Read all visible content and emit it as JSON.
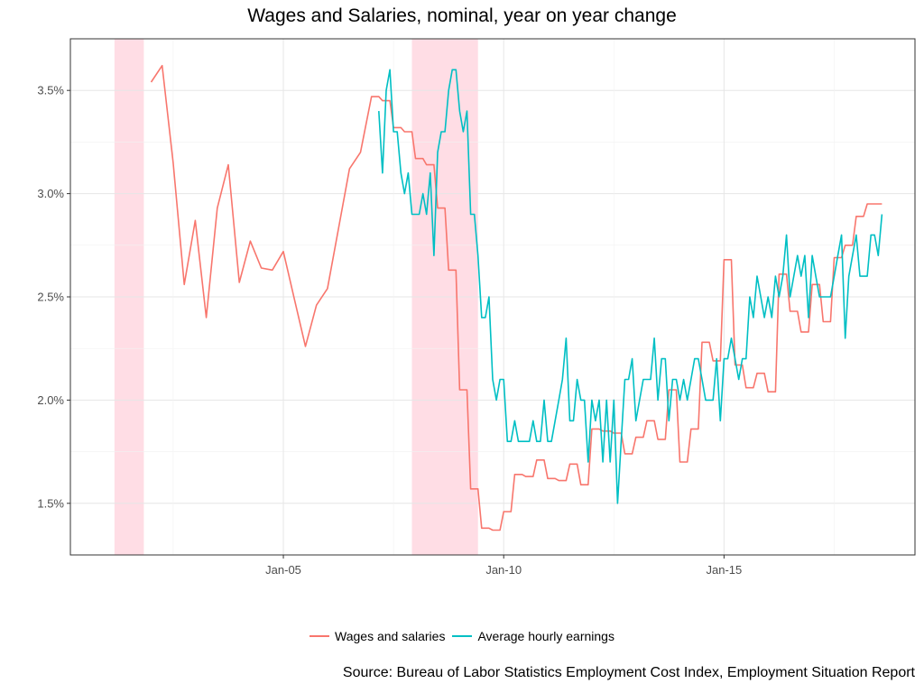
{
  "chart_data": {
    "type": "line",
    "title": "Wages and Salaries, nominal, year on year change",
    "caption": "Source: Bureau of Labor Statistics Employment Cost Index, Employment Situation Report",
    "xlabel": "",
    "ylabel": "",
    "x_ticks": [
      {
        "label": "Jan-05",
        "date": "2005-01"
      },
      {
        "label": "Jan-10",
        "date": "2010-01"
      },
      {
        "label": "Jan-15",
        "date": "2015-01"
      }
    ],
    "y_ticks": [
      "1.5%",
      "2.0%",
      "2.5%",
      "3.0%",
      "3.5%"
    ],
    "y_tick_values": [
      1.5,
      2.0,
      2.5,
      3.0,
      3.5
    ],
    "xlim": [
      "2000-03",
      "2019-05"
    ],
    "ylim": [
      1.25,
      3.75
    ],
    "grid": true,
    "legend_position": "bottom",
    "recessions": [
      {
        "start": "2001-03",
        "end": "2001-11"
      },
      {
        "start": "2007-12",
        "end": "2009-06"
      }
    ],
    "series": [
      {
        "name": "Wages and salaries",
        "color": "#F8766D",
        "step": false,
        "points": [
          [
            "2002-01",
            3.54
          ],
          [
            "2002-04",
            3.62
          ],
          [
            "2002-07",
            3.15
          ],
          [
            "2002-10",
            2.56
          ],
          [
            "2003-01",
            2.87
          ],
          [
            "2003-04",
            2.4
          ],
          [
            "2003-07",
            2.93
          ],
          [
            "2003-10",
            3.14
          ],
          [
            "2004-01",
            2.57
          ],
          [
            "2004-04",
            2.77
          ],
          [
            "2004-07",
            2.64
          ],
          [
            "2004-10",
            2.63
          ],
          [
            "2005-01",
            2.72
          ],
          [
            "2005-04",
            2.49
          ],
          [
            "2005-07",
            2.26
          ],
          [
            "2005-10",
            2.46
          ],
          [
            "2006-01",
            2.54
          ],
          [
            "2006-04",
            2.83
          ],
          [
            "2006-07",
            3.12
          ],
          [
            "2006-10",
            3.2
          ],
          [
            "2007-01",
            3.47
          ],
          [
            "2007-03",
            3.47
          ],
          [
            "2007-04",
            3.45
          ],
          [
            "2007-06",
            3.45
          ],
          [
            "2007-07",
            3.32
          ],
          [
            "2007-09",
            3.32
          ],
          [
            "2007-10",
            3.3
          ],
          [
            "2007-12",
            3.3
          ],
          [
            "2008-01",
            3.17
          ],
          [
            "2008-03",
            3.17
          ],
          [
            "2008-04",
            3.14
          ],
          [
            "2008-06",
            3.14
          ],
          [
            "2008-07",
            2.93
          ],
          [
            "2008-09",
            2.93
          ],
          [
            "2008-10",
            2.63
          ],
          [
            "2008-12",
            2.63
          ],
          [
            "2009-01",
            2.05
          ],
          [
            "2009-03",
            2.05
          ],
          [
            "2009-04",
            1.57
          ],
          [
            "2009-06",
            1.57
          ],
          [
            "2009-07",
            1.38
          ],
          [
            "2009-09",
            1.38
          ],
          [
            "2009-10",
            1.37
          ],
          [
            "2009-12",
            1.37
          ],
          [
            "2010-01",
            1.46
          ],
          [
            "2010-03",
            1.46
          ],
          [
            "2010-04",
            1.64
          ],
          [
            "2010-06",
            1.64
          ],
          [
            "2010-07",
            1.63
          ],
          [
            "2010-09",
            1.63
          ],
          [
            "2010-10",
            1.71
          ],
          [
            "2010-12",
            1.71
          ],
          [
            "2011-01",
            1.62
          ],
          [
            "2011-03",
            1.62
          ],
          [
            "2011-04",
            1.61
          ],
          [
            "2011-06",
            1.61
          ],
          [
            "2011-07",
            1.69
          ],
          [
            "2011-09",
            1.69
          ],
          [
            "2011-10",
            1.59
          ],
          [
            "2011-12",
            1.59
          ],
          [
            "2012-01",
            1.86
          ],
          [
            "2012-03",
            1.86
          ],
          [
            "2012-04",
            1.85
          ],
          [
            "2012-06",
            1.85
          ],
          [
            "2012-07",
            1.84
          ],
          [
            "2012-09",
            1.84
          ],
          [
            "2012-10",
            1.74
          ],
          [
            "2012-12",
            1.74
          ],
          [
            "2013-01",
            1.82
          ],
          [
            "2013-03",
            1.82
          ],
          [
            "2013-04",
            1.9
          ],
          [
            "2013-06",
            1.9
          ],
          [
            "2013-07",
            1.81
          ],
          [
            "2013-09",
            1.81
          ],
          [
            "2013-10",
            2.05
          ],
          [
            "2013-12",
            2.05
          ],
          [
            "2014-01",
            1.7
          ],
          [
            "2014-03",
            1.7
          ],
          [
            "2014-04",
            1.86
          ],
          [
            "2014-06",
            1.86
          ],
          [
            "2014-07",
            2.28
          ],
          [
            "2014-09",
            2.28
          ],
          [
            "2014-10",
            2.19
          ],
          [
            "2014-12",
            2.19
          ],
          [
            "2015-01",
            2.68
          ],
          [
            "2015-03",
            2.68
          ],
          [
            "2015-04",
            2.17
          ],
          [
            "2015-06",
            2.17
          ],
          [
            "2015-07",
            2.06
          ],
          [
            "2015-09",
            2.06
          ],
          [
            "2015-10",
            2.13
          ],
          [
            "2015-12",
            2.13
          ],
          [
            "2016-01",
            2.04
          ],
          [
            "2016-03",
            2.04
          ],
          [
            "2016-04",
            2.61
          ],
          [
            "2016-06",
            2.61
          ],
          [
            "2016-07",
            2.43
          ],
          [
            "2016-09",
            2.43
          ],
          [
            "2016-10",
            2.33
          ],
          [
            "2016-12",
            2.33
          ],
          [
            "2017-01",
            2.56
          ],
          [
            "2017-03",
            2.56
          ],
          [
            "2017-04",
            2.38
          ],
          [
            "2017-06",
            2.38
          ],
          [
            "2017-07",
            2.69
          ],
          [
            "2017-09",
            2.69
          ],
          [
            "2017-10",
            2.75
          ],
          [
            "2017-12",
            2.75
          ],
          [
            "2018-01",
            2.89
          ],
          [
            "2018-03",
            2.89
          ],
          [
            "2018-04",
            2.95
          ],
          [
            "2018-08",
            2.95
          ]
        ]
      },
      {
        "name": "Average hourly earnings",
        "color": "#00BFC4",
        "step": false,
        "points": [
          [
            "2007-03",
            3.4
          ],
          [
            "2007-04",
            3.1
          ],
          [
            "2007-05",
            3.5
          ],
          [
            "2007-06",
            3.6
          ],
          [
            "2007-07",
            3.3
          ],
          [
            "2007-08",
            3.3
          ],
          [
            "2007-09",
            3.1
          ],
          [
            "2007-10",
            3.0
          ],
          [
            "2007-11",
            3.1
          ],
          [
            "2007-12",
            2.9
          ],
          [
            "2008-01",
            2.9
          ],
          [
            "2008-02",
            2.9
          ],
          [
            "2008-03",
            3.0
          ],
          [
            "2008-04",
            2.9
          ],
          [
            "2008-05",
            3.1
          ],
          [
            "2008-06",
            2.7
          ],
          [
            "2008-07",
            3.2
          ],
          [
            "2008-08",
            3.3
          ],
          [
            "2008-09",
            3.3
          ],
          [
            "2008-10",
            3.5
          ],
          [
            "2008-11",
            3.6
          ],
          [
            "2008-12",
            3.6
          ],
          [
            "2009-01",
            3.4
          ],
          [
            "2009-02",
            3.3
          ],
          [
            "2009-03",
            3.4
          ],
          [
            "2009-04",
            2.9
          ],
          [
            "2009-05",
            2.9
          ],
          [
            "2009-06",
            2.7
          ],
          [
            "2009-07",
            2.4
          ],
          [
            "2009-08",
            2.4
          ],
          [
            "2009-09",
            2.5
          ],
          [
            "2009-10",
            2.1
          ],
          [
            "2009-11",
            2.0
          ],
          [
            "2009-12",
            2.1
          ],
          [
            "2010-01",
            2.1
          ],
          [
            "2010-02",
            1.8
          ],
          [
            "2010-03",
            1.8
          ],
          [
            "2010-04",
            1.9
          ],
          [
            "2010-05",
            1.8
          ],
          [
            "2010-06",
            1.8
          ],
          [
            "2010-07",
            1.8
          ],
          [
            "2010-08",
            1.8
          ],
          [
            "2010-09",
            1.9
          ],
          [
            "2010-10",
            1.8
          ],
          [
            "2010-11",
            1.8
          ],
          [
            "2010-12",
            2.0
          ],
          [
            "2011-01",
            1.8
          ],
          [
            "2011-02",
            1.8
          ],
          [
            "2011-03",
            1.9
          ],
          [
            "2011-04",
            2.0
          ],
          [
            "2011-05",
            2.1
          ],
          [
            "2011-06",
            2.3
          ],
          [
            "2011-07",
            1.9
          ],
          [
            "2011-08",
            1.9
          ],
          [
            "2011-09",
            2.1
          ],
          [
            "2011-10",
            2.0
          ],
          [
            "2011-11",
            2.0
          ],
          [
            "2011-12",
            1.7
          ],
          [
            "2012-01",
            2.0
          ],
          [
            "2012-02",
            1.9
          ],
          [
            "2012-03",
            2.0
          ],
          [
            "2012-04",
            1.7
          ],
          [
            "2012-05",
            2.0
          ],
          [
            "2012-06",
            1.7
          ],
          [
            "2012-07",
            2.0
          ],
          [
            "2012-08",
            1.5
          ],
          [
            "2012-09",
            1.8
          ],
          [
            "2012-10",
            2.1
          ],
          [
            "2012-11",
            2.1
          ],
          [
            "2012-12",
            2.2
          ],
          [
            "2013-01",
            1.9
          ],
          [
            "2013-02",
            2.0
          ],
          [
            "2013-03",
            2.1
          ],
          [
            "2013-04",
            2.1
          ],
          [
            "2013-05",
            2.1
          ],
          [
            "2013-06",
            2.3
          ],
          [
            "2013-07",
            2.0
          ],
          [
            "2013-08",
            2.2
          ],
          [
            "2013-09",
            2.2
          ],
          [
            "2013-10",
            1.9
          ],
          [
            "2013-11",
            2.1
          ],
          [
            "2013-12",
            2.1
          ],
          [
            "2014-01",
            2.0
          ],
          [
            "2014-02",
            2.1
          ],
          [
            "2014-03",
            2.0
          ],
          [
            "2014-04",
            2.1
          ],
          [
            "2014-05",
            2.2
          ],
          [
            "2014-06",
            2.2
          ],
          [
            "2014-07",
            2.1
          ],
          [
            "2014-08",
            2.0
          ],
          [
            "2014-09",
            2.0
          ],
          [
            "2014-10",
            2.0
          ],
          [
            "2014-11",
            2.2
          ],
          [
            "2014-12",
            1.9
          ],
          [
            "2015-01",
            2.2
          ],
          [
            "2015-02",
            2.2
          ],
          [
            "2015-03",
            2.3
          ],
          [
            "2015-04",
            2.2
          ],
          [
            "2015-05",
            2.1
          ],
          [
            "2015-06",
            2.2
          ],
          [
            "2015-07",
            2.2
          ],
          [
            "2015-08",
            2.5
          ],
          [
            "2015-09",
            2.4
          ],
          [
            "2015-10",
            2.6
          ],
          [
            "2015-11",
            2.5
          ],
          [
            "2015-12",
            2.4
          ],
          [
            "2016-01",
            2.5
          ],
          [
            "2016-02",
            2.4
          ],
          [
            "2016-03",
            2.6
          ],
          [
            "2016-04",
            2.5
          ],
          [
            "2016-05",
            2.6
          ],
          [
            "2016-06",
            2.8
          ],
          [
            "2016-07",
            2.5
          ],
          [
            "2016-08",
            2.6
          ],
          [
            "2016-09",
            2.7
          ],
          [
            "2016-10",
            2.6
          ],
          [
            "2016-11",
            2.7
          ],
          [
            "2016-12",
            2.4
          ],
          [
            "2017-01",
            2.7
          ],
          [
            "2017-02",
            2.6
          ],
          [
            "2017-03",
            2.5
          ],
          [
            "2017-04",
            2.5
          ],
          [
            "2017-05",
            2.5
          ],
          [
            "2017-06",
            2.5
          ],
          [
            "2017-07",
            2.6
          ],
          [
            "2017-08",
            2.7
          ],
          [
            "2017-09",
            2.8
          ],
          [
            "2017-10",
            2.3
          ],
          [
            "2017-11",
            2.6
          ],
          [
            "2017-12",
            2.7
          ],
          [
            "2018-01",
            2.8
          ],
          [
            "2018-02",
            2.6
          ],
          [
            "2018-03",
            2.6
          ],
          [
            "2018-04",
            2.6
          ],
          [
            "2018-05",
            2.8
          ],
          [
            "2018-06",
            2.8
          ],
          [
            "2018-07",
            2.7
          ],
          [
            "2018-08",
            2.9
          ]
        ]
      }
    ]
  }
}
